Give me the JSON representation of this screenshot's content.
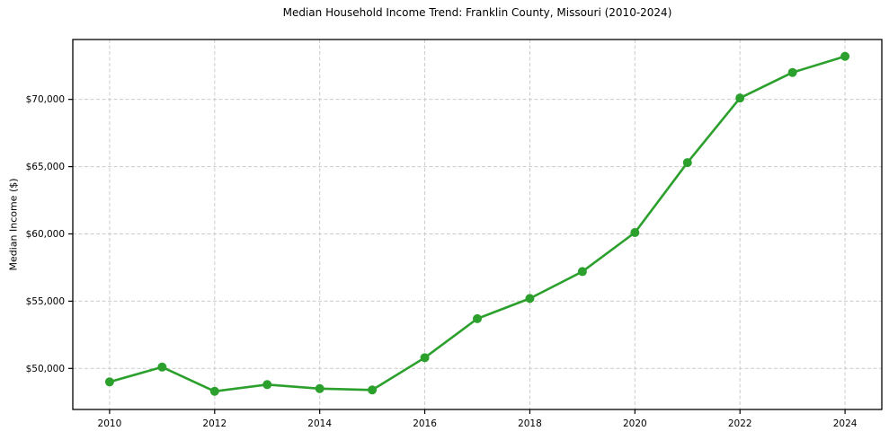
{
  "chart_data": {
    "type": "line",
    "title": "Median Household Income Trend: Franklin County, Missouri (2010-2024)",
    "xlabel": "",
    "ylabel": "Median Income ($)",
    "x": [
      2010,
      2011,
      2012,
      2013,
      2014,
      2015,
      2016,
      2017,
      2018,
      2019,
      2020,
      2021,
      2022,
      2023,
      2024
    ],
    "series": [
      {
        "name": "Median Household Income",
        "values": [
          49000,
          50100,
          48300,
          48800,
          48500,
          48400,
          50800,
          53700,
          55200,
          57200,
          60100,
          65300,
          70100,
          72000,
          73200
        ]
      }
    ],
    "xticks": [
      2010,
      2012,
      2014,
      2016,
      2018,
      2020,
      2022,
      2024
    ],
    "xtick_labels": [
      "2010",
      "2012",
      "2014",
      "2016",
      "2018",
      "2020",
      "2022",
      "2024"
    ],
    "yticks": [
      50000,
      55000,
      60000,
      65000,
      70000
    ],
    "ytick_labels": [
      "$50,000",
      "$55,000",
      "$60,000",
      "$65,000",
      "$70,000"
    ],
    "xlim": [
      2009.3,
      2024.7
    ],
    "ylim": [
      46950,
      74450
    ],
    "grid": true,
    "legend": false,
    "marker": "circle",
    "line_color": "#2ca02c",
    "marker_color": "#2ca02c",
    "grid_color": "#cccccc",
    "axis_color": "#000000",
    "text_color": "#000000",
    "background_color": "#ffffff"
  }
}
